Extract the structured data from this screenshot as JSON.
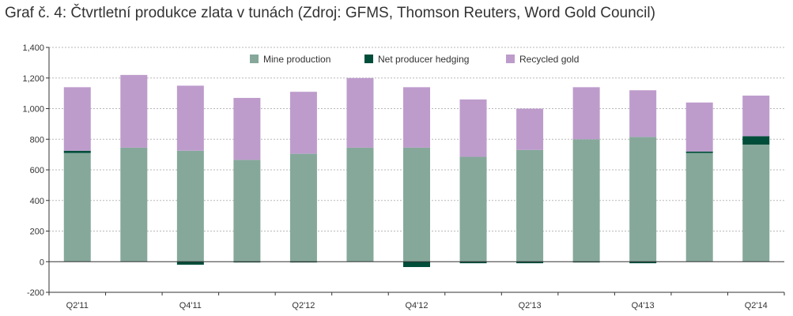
{
  "title": "Graf č. 4: Čtvrtletní produkce zlata v tunách (Zdroj: GFMS, Thomson Reuters, Word Gold Council)",
  "colors": {
    "mine": "#85a89a",
    "hedging": "#004d3a",
    "recycled": "#bd9ccc",
    "grid": "#b7b7b7",
    "axis": "#333333"
  },
  "chart_data": {
    "type": "bar",
    "stacked": true,
    "title": "Graf č. 4: Čtvrtletní produkce zlata v tunách (Zdroj: GFMS, Thomson Reuters, Word Gold Council)",
    "xlabel": "",
    "ylabel": "",
    "ylim": [
      -200,
      1400
    ],
    "yticks": [
      -200,
      0,
      200,
      400,
      600,
      800,
      1000,
      1200,
      1400
    ],
    "ytick_labels": [
      "-200",
      "0",
      "200",
      "400",
      "600",
      "800",
      "1,000",
      "1,200",
      "1,400"
    ],
    "categories": [
      "Q2'11",
      "Q3'11",
      "Q4'11",
      "Q1'12",
      "Q2'12",
      "Q3'12",
      "Q4'12",
      "Q1'13",
      "Q2'13",
      "Q3'13",
      "Q4'13",
      "Q1'14",
      "Q2'14"
    ],
    "category_labels": [
      "Q2'11",
      "",
      "Q4'11",
      "",
      "Q2'12",
      "",
      "Q4'12",
      "",
      "Q2'13",
      "",
      "Q4'13",
      "",
      "Q2'14"
    ],
    "grid": "horizontal",
    "legend_position": "top-center",
    "series": [
      {
        "name": "Mine production",
        "values": [
          710,
          745,
          725,
          665,
          705,
          745,
          745,
          685,
          730,
          800,
          815,
          710,
          765
        ]
      },
      {
        "name": "Net producer hedging",
        "values": [
          15,
          0,
          -20,
          -5,
          -5,
          0,
          -35,
          -10,
          -10,
          -5,
          -10,
          10,
          55
        ]
      },
      {
        "name": "Recycled gold",
        "values": [
          415,
          475,
          425,
          405,
          405,
          455,
          395,
          375,
          270,
          340,
          305,
          320,
          265
        ]
      }
    ]
  }
}
